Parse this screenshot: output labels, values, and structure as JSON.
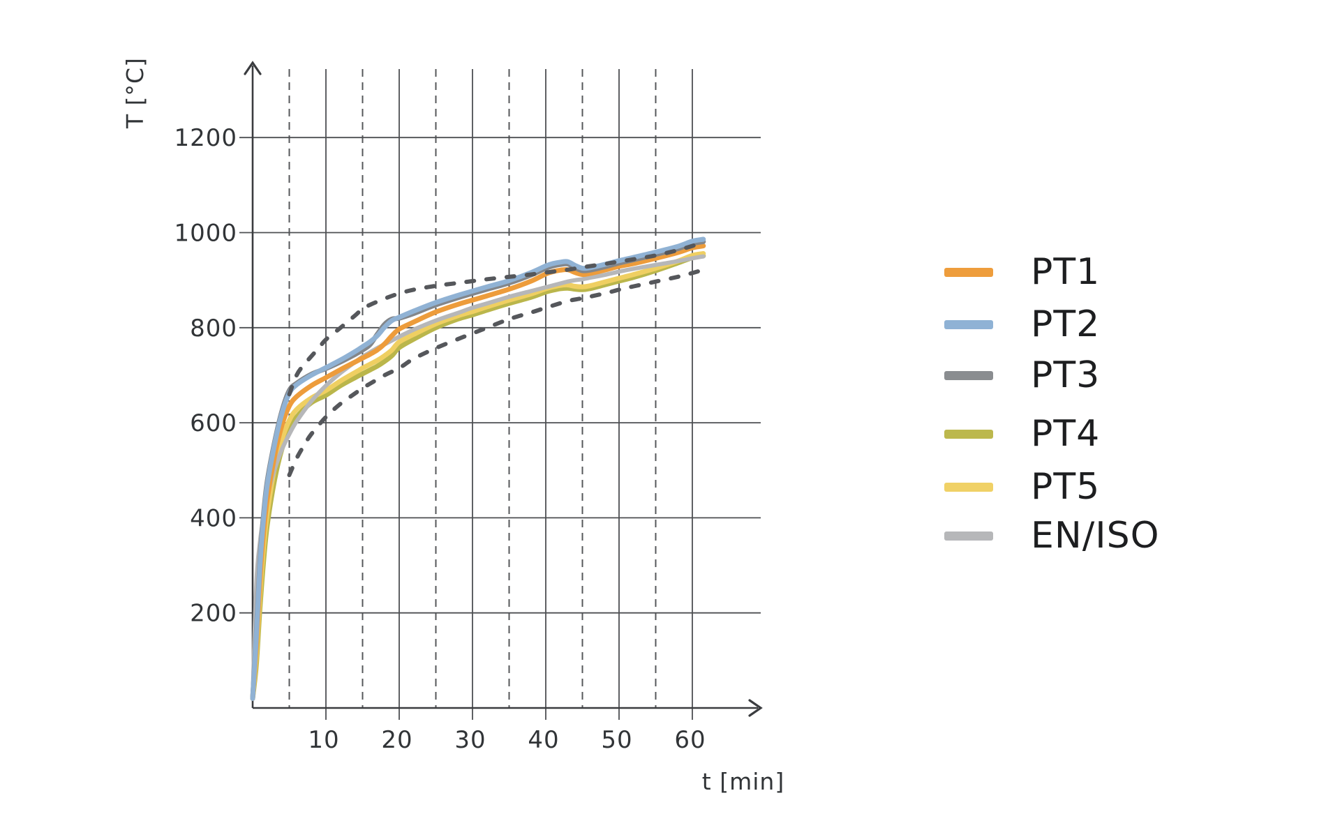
{
  "page": {
    "background": "#ffffff"
  },
  "chart_data": {
    "type": "line",
    "title": "",
    "xlabel": "t [min]",
    "ylabel": "T [°C]",
    "x_axis": {
      "label": "t [min]",
      "range": [
        0,
        66
      ],
      "major_ticks": [
        10,
        20,
        30,
        40,
        50,
        60
      ],
      "major_tick_labels": [
        "10",
        "20",
        "30",
        "40",
        "50",
        "60"
      ],
      "minor_ticks_dashed": [
        5,
        15,
        25,
        35,
        45,
        55
      ]
    },
    "y_axis": {
      "label": "T [°C]",
      "range": [
        0,
        1340
      ],
      "ticks": [
        200,
        400,
        600,
        800,
        1000,
        1200
      ],
      "tick_labels": [
        "200",
        "400",
        "600",
        "800",
        "1000",
        "1200"
      ]
    },
    "grid": {
      "horizontal": "solid",
      "vertical_major": "solid",
      "vertical_minor": "dashed",
      "color": "#4d4f52"
    },
    "legend_position": "right",
    "draw_order": [
      "PT4",
      "PT5",
      "EN/ISO",
      "PT1",
      "PT3",
      "PT2"
    ],
    "t_shared": [
      0,
      0.5,
      1,
      1.5,
      2,
      3,
      4,
      5,
      6,
      8,
      10,
      12,
      14,
      15,
      16,
      17,
      18,
      19,
      20,
      22,
      25,
      28,
      30,
      32,
      35,
      38,
      40,
      41,
      42,
      43,
      44,
      45,
      46,
      48,
      50,
      52,
      55,
      58,
      60,
      61.5
    ],
    "series": [
      {
        "name": "PT1",
        "color": "#ED9C3B",
        "width": 7,
        "style": "solid",
        "T": [
          20,
          130,
          270,
          370,
          440,
          530,
          595,
          635,
          655,
          678,
          695,
          712,
          728,
          736,
          744,
          753,
          766,
          783,
          797,
          812,
          833,
          849,
          858,
          867,
          881,
          898,
          913,
          918,
          921,
          922,
          916,
          912,
          914,
          921,
          929,
          935,
          946,
          958,
          968,
          972
        ]
      },
      {
        "name": "PT2",
        "color": "#90B2D4",
        "width": 7,
        "style": "solid",
        "T": [
          20,
          150,
          300,
          400,
          470,
          555,
          620,
          662,
          680,
          700,
          716,
          732,
          750,
          760,
          770,
          783,
          801,
          815,
          822,
          835,
          853,
          868,
          877,
          886,
          899,
          916,
          930,
          935,
          938,
          939,
          931,
          925,
          926,
          933,
          941,
          948,
          959,
          971,
          982,
          986
        ]
      },
      {
        "name": "PT3",
        "color": "#83868A",
        "width": 7,
        "style": "solid",
        "T": [
          20,
          160,
          310,
          410,
          478,
          560,
          625,
          668,
          683,
          702,
          714,
          728,
          744,
          753,
          764,
          786,
          807,
          818,
          820,
          830,
          848,
          863,
          872,
          881,
          894,
          911,
          925,
          930,
          933,
          934,
          926,
          920,
          921,
          928,
          936,
          943,
          954,
          966,
          977,
          981
        ]
      },
      {
        "name": "PT4",
        "color": "#BAB64B",
        "width": 7,
        "style": "solid",
        "T": [
          20,
          90,
          210,
          310,
          385,
          480,
          545,
          585,
          612,
          642,
          658,
          678,
          695,
          703,
          711,
          719,
          729,
          741,
          758,
          776,
          800,
          818,
          827,
          837,
          851,
          864,
          875,
          879,
          882,
          883,
          881,
          880,
          882,
          890,
          898,
          906,
          920,
          936,
          947,
          951
        ]
      },
      {
        "name": "PT5",
        "color": "#EFCF62",
        "width": 7,
        "style": "solid",
        "T": [
          20,
          110,
          240,
          340,
          410,
          505,
          565,
          605,
          628,
          652,
          668,
          688,
          706,
          715,
          723,
          731,
          741,
          753,
          770,
          786,
          808,
          825,
          834,
          844,
          858,
          871,
          882,
          886,
          889,
          890,
          887,
          886,
          888,
          896,
          904,
          912,
          925,
          940,
          952,
          956
        ]
      },
      {
        "name": "EN/ISO",
        "color": "#B6B7B9",
        "width": 6,
        "style": "solid",
        "T": [
          20,
          261,
          349,
          404,
          444,
          502,
          544,
          576,
          603,
          645,
          678,
          705,
          728,
          739,
          748,
          757,
          765,
          773,
          781,
          796,
          815,
          831,
          842,
          851,
          865,
          877,
          885,
          889,
          893,
          897,
          900,
          902,
          905,
          911,
          918,
          924,
          932,
          940,
          946,
          950
        ]
      }
    ],
    "tolerance_bounds": [
      {
        "name": "upper-tolerance",
        "color": "#55575B",
        "width": 6,
        "style": "dashed",
        "t": [
          5,
          6,
          7,
          9,
          10,
          12,
          14,
          15,
          16,
          18,
          20,
          22,
          25,
          28,
          30,
          32,
          35,
          38,
          40,
          43,
          45,
          48,
          50,
          52,
          55,
          58,
          60,
          61.5
        ],
        "T": [
          660,
          700,
          722,
          757,
          775,
          800,
          826,
          840,
          848,
          861,
          872,
          880,
          888,
          894,
          898,
          902,
          907,
          912,
          916,
          922,
          927,
          934,
          939,
          944,
          952,
          963,
          972,
          980
        ]
      },
      {
        "name": "lower-tolerance",
        "color": "#55575B",
        "width": 6,
        "style": "dashed",
        "t": [
          5,
          6,
          7,
          8,
          10,
          12,
          14,
          15,
          16,
          18,
          20,
          22,
          25,
          28,
          30,
          32,
          35,
          38,
          40,
          43,
          45,
          48,
          50,
          52,
          55,
          58,
          60,
          61.5
        ],
        "T": [
          490,
          525,
          552,
          576,
          612,
          640,
          662,
          673,
          682,
          700,
          715,
          735,
          757,
          776,
          788,
          800,
          818,
          832,
          842,
          856,
          862,
          872,
          880,
          887,
          897,
          907,
          915,
          922
        ]
      }
    ],
    "axis_color": "#3a3c3f",
    "dashed_bound_color": "#55575B"
  },
  "legend": {
    "items": [
      {
        "label": "PT1",
        "color": "#EE9D3C"
      },
      {
        "label": "PT2",
        "color": "#8FB2D5"
      },
      {
        "label": "PT3",
        "color": "#8A8D90"
      },
      {
        "label": "PT4",
        "color": "#BCB84D"
      },
      {
        "label": "PT5",
        "color": "#F0D166"
      },
      {
        "label": "EN/ISO",
        "color": "#B6B7B9"
      }
    ]
  }
}
